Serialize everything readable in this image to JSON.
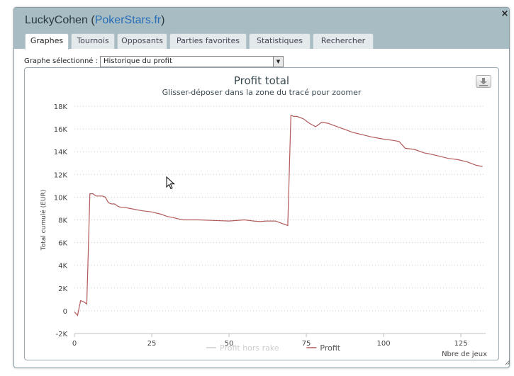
{
  "dialog": {
    "player": "LuckyCohen",
    "site": "PokerStars.fr",
    "close_label": "×"
  },
  "tabs": [
    {
      "label": "Graphes",
      "active": true
    },
    {
      "label": "Tournois",
      "active": false
    },
    {
      "label": "Opposants",
      "active": false
    },
    {
      "label": "Parties favorites",
      "active": false
    },
    {
      "label": "Statistiques",
      "active": false
    },
    {
      "label": "Rechercher",
      "active": false
    }
  ],
  "graph_select": {
    "label": "Graphe sélectionné :",
    "value": "Historique du profit"
  },
  "icons": {
    "export": "download-icon",
    "cursor": "mouse-pointer-icon",
    "close": "close-icon",
    "dropdown": "chevron-down-icon"
  },
  "chart_data": {
    "type": "line",
    "title": "Profit total",
    "subtitle": "Glisser-déposer dans la zone du tracé pour zoomer",
    "xlabel": "Nbre de jeux",
    "ylabel": "Total cumulé (EUR)",
    "xlim": [
      0,
      133
    ],
    "ylim": [
      -2000,
      18000
    ],
    "xticks": [
      0,
      25,
      50,
      75,
      100,
      125
    ],
    "xtick_labels": [
      "0",
      "25",
      "50",
      "75",
      "100",
      "125"
    ],
    "yticks": [
      -2000,
      0,
      2000,
      4000,
      6000,
      8000,
      10000,
      12000,
      14000,
      16000,
      18000
    ],
    "ytick_labels": [
      "-2K",
      "0",
      "2K",
      "4K",
      "6K",
      "8K",
      "10K",
      "12K",
      "14K",
      "16K",
      "18K"
    ],
    "grid": true,
    "legend_position": "bottom",
    "series": [
      {
        "name": "Profit hors rake",
        "color": "#cccccc",
        "x": [],
        "y": []
      },
      {
        "name": "Profit",
        "color": "#b25b5b",
        "x": [
          0,
          1,
          2,
          3,
          4,
          5,
          6,
          7,
          8,
          9,
          10,
          11,
          12,
          13,
          14,
          15,
          16,
          18,
          20,
          22,
          25,
          28,
          30,
          32,
          35,
          40,
          45,
          50,
          55,
          58,
          60,
          62,
          65,
          67,
          69,
          70,
          71,
          72,
          74,
          76,
          78,
          80,
          82,
          85,
          88,
          90,
          93,
          96,
          100,
          103,
          105,
          107,
          110,
          113,
          115,
          118,
          121,
          124,
          127,
          130,
          132
        ],
        "y": [
          -100,
          -400,
          900,
          800,
          600,
          10300,
          10300,
          10100,
          10100,
          10100,
          10000,
          9500,
          9400,
          9400,
          9200,
          9100,
          9100,
          9000,
          8900,
          8800,
          8700,
          8500,
          8300,
          8200,
          8000,
          8000,
          7950,
          7900,
          8000,
          7900,
          7850,
          7900,
          7900,
          7700,
          7500,
          17200,
          17100,
          17100,
          16900,
          16500,
          16200,
          16600,
          16500,
          16200,
          15900,
          15700,
          15500,
          15300,
          15100,
          15000,
          14900,
          14300,
          14200,
          13900,
          13800,
          13600,
          13400,
          13300,
          13100,
          12800,
          12700
        ]
      }
    ]
  }
}
